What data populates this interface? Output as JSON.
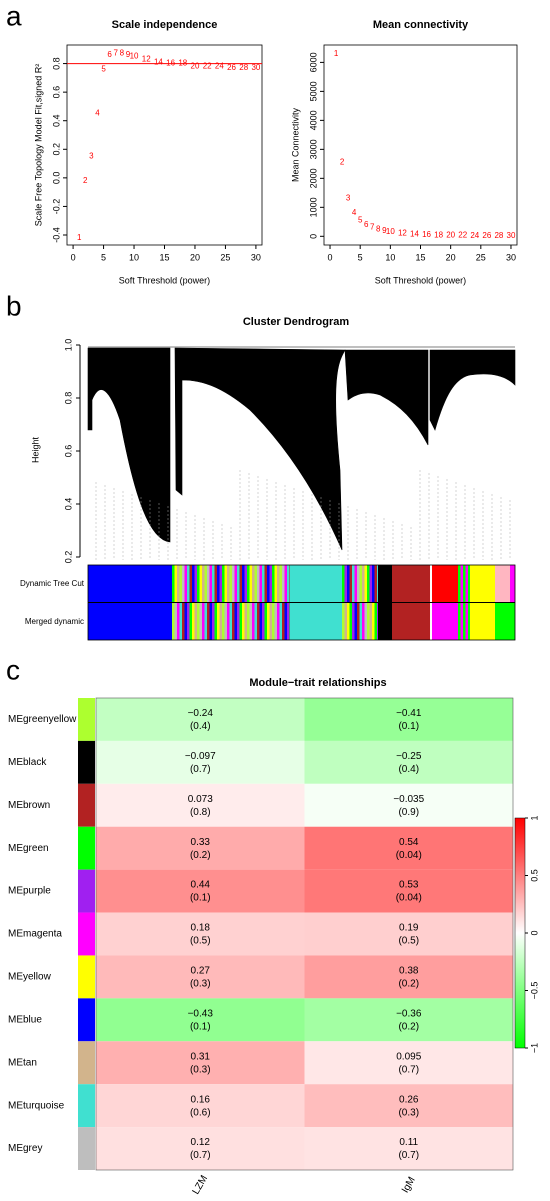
{
  "chart_data": [
    {
      "type": "text-scatter",
      "panel_label": "a",
      "title": "Scale independence",
      "x_label": "Soft Threshold (power)",
      "y_label": "Scale Free Topology Model Fit,signed R²",
      "x": [
        1,
        2,
        3,
        4,
        5,
        6,
        7,
        8,
        9,
        10,
        12,
        14,
        16,
        18,
        20,
        22,
        24,
        26,
        28,
        30
      ],
      "values": [
        -0.42,
        -0.02,
        0.15,
        0.45,
        0.76,
        0.86,
        0.87,
        0.87,
        0.86,
        0.85,
        0.83,
        0.81,
        0.8,
        0.8,
        0.78,
        0.78,
        0.78,
        0.77,
        0.77,
        0.77
      ],
      "color": "#ff0000",
      "h_line": 0.8,
      "xlim": [
        -1,
        31
      ],
      "ylim": [
        -0.47,
        0.93
      ],
      "xticks": [
        0,
        5,
        10,
        15,
        20,
        25,
        30
      ],
      "yticks": [
        -0.4,
        -0.2,
        {
          "value": 0,
          "label": "0.0"
        },
        0.2,
        0.4,
        0.6,
        0.8
      ]
    },
    {
      "type": "text-scatter",
      "title": "Mean connectivity",
      "x_label": "Soft Threshold (power)",
      "y_label": "Mean Connectivity",
      "x": [
        1,
        2,
        3,
        4,
        5,
        6,
        7,
        8,
        9,
        10,
        12,
        14,
        16,
        18,
        20,
        22,
        24,
        26,
        28,
        30
      ],
      "values": [
        6300,
        2550,
        1300,
        800,
        550,
        400,
        300,
        230,
        180,
        150,
        100,
        70,
        55,
        40,
        32,
        25,
        20,
        16,
        13,
        10
      ],
      "color": "#ff0000",
      "xlim": [
        -1,
        31
      ],
      "ylim": [
        -300,
        6600
      ],
      "xticks": [
        0,
        5,
        10,
        15,
        20,
        25,
        30
      ],
      "yticks": [
        0,
        1000,
        2000,
        3000,
        4000,
        5000,
        6000
      ]
    },
    {
      "type": "dendrogram",
      "panel_label": "b",
      "title": "Cluster Dendrogram",
      "y_label": "Height",
      "ylim": [
        0.2,
        1
      ],
      "yticks": [
        0.2,
        0.4,
        0.6,
        0.8,
        {
          "value": 1,
          "label": "1.0"
        }
      ],
      "color_bar_labels": [
        "Dynamic Tree Cut",
        "Merged dynamic"
      ]
    },
    {
      "type": "heatmap",
      "panel_label": "c",
      "title": "Module−trait relationships",
      "rows": [
        "MEgreenyellow",
        "MEblack",
        "MEbrown",
        "MEgreen",
        "MEpurple",
        "MEmagenta",
        "MEyellow",
        "MEblue",
        "MEtan",
        "MEturquoise",
        "MEgrey"
      ],
      "row_colors": [
        "#adff2f",
        "#000000",
        "#b22222",
        "#00ff00",
        "#a020f0",
        "#ff00ff",
        "#ffff00",
        "#0000ff",
        "#d2b48c",
        "#40e0d0",
        "#bebebe"
      ],
      "columns": [
        "LZM",
        "IgM"
      ],
      "values": [
        [
          -0.24,
          -0.41
        ],
        [
          -0.097,
          -0.25
        ],
        [
          0.073,
          -0.035
        ],
        [
          0.33,
          0.54
        ],
        [
          0.44,
          0.53
        ],
        [
          0.18,
          0.19
        ],
        [
          0.27,
          0.38
        ],
        [
          -0.43,
          -0.36
        ],
        [
          0.31,
          0.095
        ],
        [
          0.16,
          0.26
        ],
        [
          0.12,
          0.11
        ]
      ],
      "value_labels": [
        [
          "−0.24",
          "−0.41"
        ],
        [
          "−0.097",
          "−0.25"
        ],
        [
          "0.073",
          "−0.035"
        ],
        [
          "0.33",
          "0.54"
        ],
        [
          "0.44",
          "0.53"
        ],
        [
          "0.18",
          "0.19"
        ],
        [
          "0.27",
          "0.38"
        ],
        [
          "−0.43",
          "−0.36"
        ],
        [
          "0.31",
          "0.095"
        ],
        [
          "0.16",
          "0.26"
        ],
        [
          "0.12",
          "0.11"
        ]
      ],
      "p_values": [
        [
          0.4,
          0.1
        ],
        [
          0.7,
          0.4
        ],
        [
          0.8,
          0.9
        ],
        [
          0.2,
          0.04
        ],
        [
          0.1,
          0.04
        ],
        [
          0.5,
          0.5
        ],
        [
          0.3,
          0.2
        ],
        [
          0.1,
          0.2
        ],
        [
          0.3,
          0.7
        ],
        [
          0.6,
          0.3
        ],
        [
          0.7,
          0.7
        ]
      ],
      "p_labels": [
        [
          "(0.4)",
          "(0.1)"
        ],
        [
          "(0.7)",
          "(0.4)"
        ],
        [
          "(0.8)",
          "(0.9)"
        ],
        [
          "(0.2)",
          "(0.04)"
        ],
        [
          "(0.1)",
          "(0.04)"
        ],
        [
          "(0.5)",
          "(0.5)"
        ],
        [
          "(0.3)",
          "(0.2)"
        ],
        [
          "(0.1)",
          "(0.2)"
        ],
        [
          "(0.3)",
          "(0.7)"
        ],
        [
          "(0.6)",
          "(0.3)"
        ],
        [
          "(0.7)",
          "(0.7)"
        ]
      ],
      "colorscale": [
        "#00ff00",
        "#ffffff",
        "#ff0000"
      ],
      "zlim": [
        -1,
        1
      ],
      "colorbar_ticks": [
        {
          "value": -1,
          "label": "−1"
        },
        {
          "value": -0.5,
          "label": "−0.5"
        },
        0,
        0.5,
        1
      ]
    }
  ]
}
